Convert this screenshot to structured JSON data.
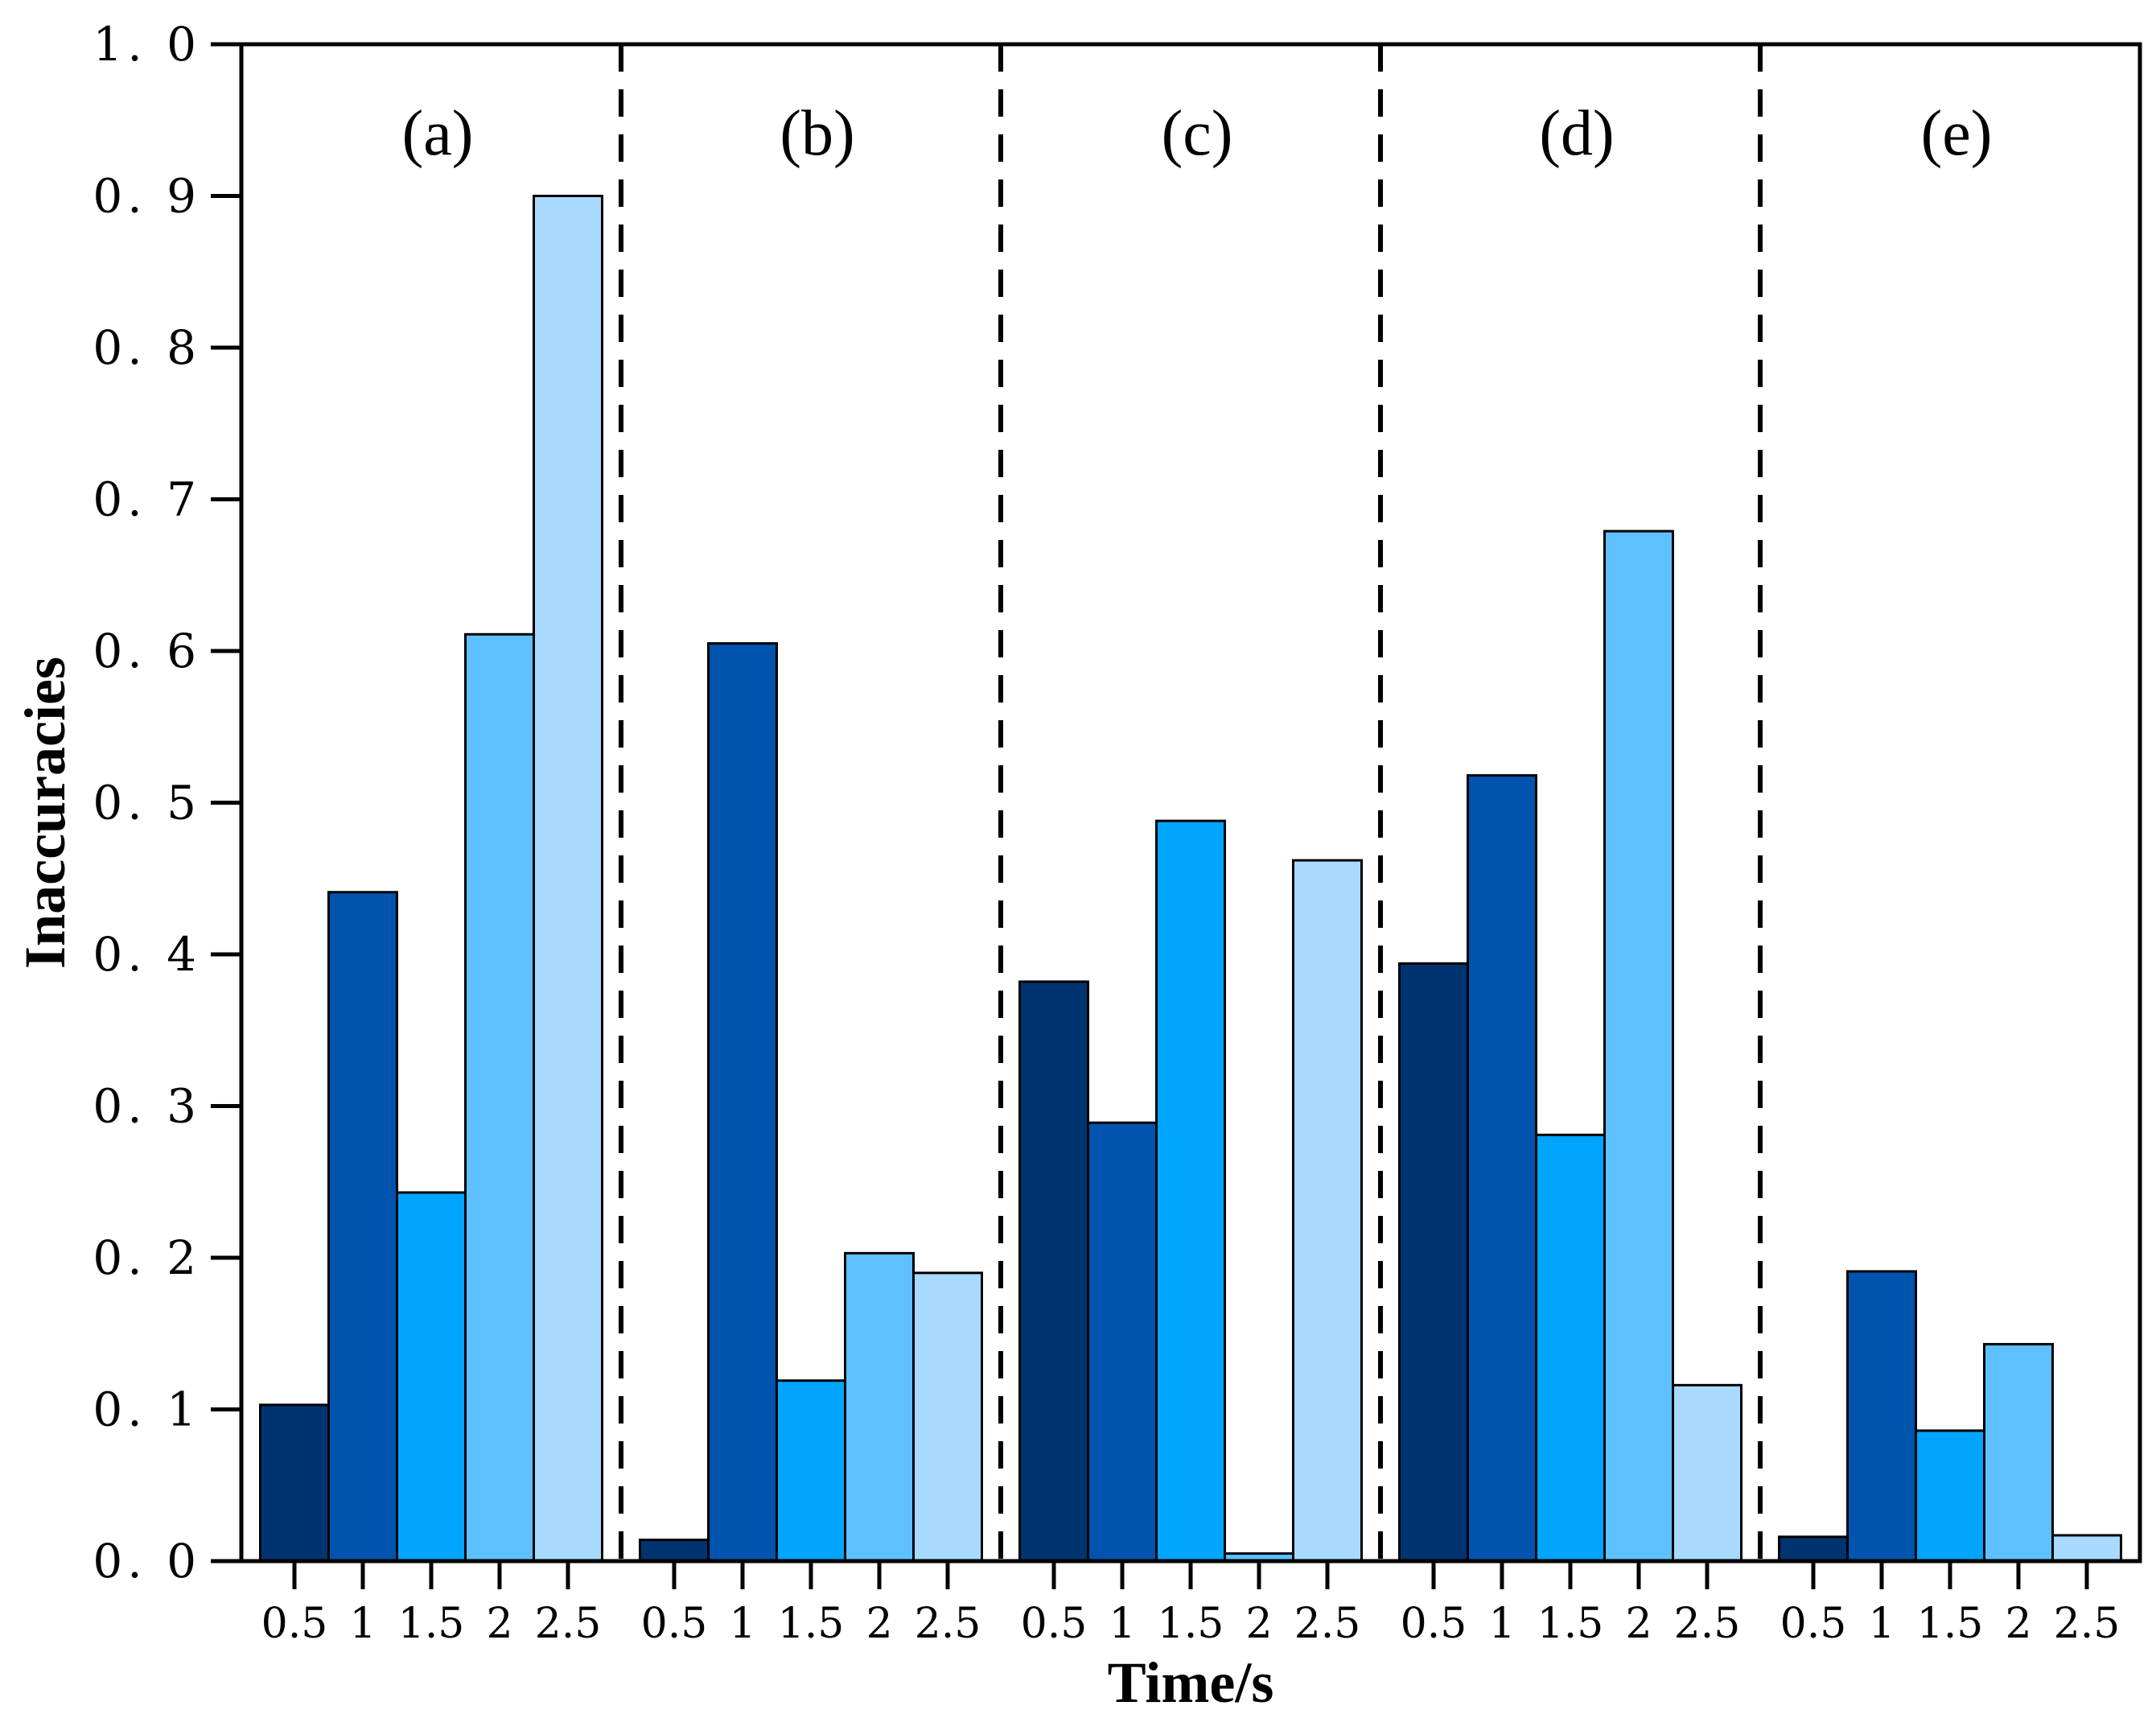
{
  "chart_data": {
    "type": "bar",
    "ylabel": "Inaccuracies",
    "xlabel": "Time/s",
    "ylim": [
      0,
      1.0
    ],
    "yticks": [
      "0. 0",
      "0. 1",
      "0. 2",
      "0. 3",
      "0. 4",
      "0. 5",
      "0. 6",
      "0. 7",
      "0. 8",
      "0. 9",
      "1. 0"
    ],
    "categories": [
      "0.5",
      "1",
      "1.5",
      "2",
      "2.5"
    ],
    "colors": [
      "#003470",
      "#0054ae",
      "#00a5fe",
      "#5ec0fe",
      "#a8daff"
    ],
    "panels": [
      {
        "label": "(a)",
        "values": [
          0.103,
          0.441,
          0.243,
          0.611,
          0.9
        ]
      },
      {
        "label": "(b)",
        "values": [
          0.014,
          0.605,
          0.119,
          0.203,
          0.19
        ]
      },
      {
        "label": "(c)",
        "values": [
          0.382,
          0.289,
          0.488,
          0.005,
          0.462
        ]
      },
      {
        "label": "(d)",
        "values": [
          0.394,
          0.518,
          0.281,
          0.679,
          0.116
        ]
      },
      {
        "label": "(e)",
        "values": [
          0.016,
          0.191,
          0.086,
          0.143,
          0.017
        ]
      }
    ]
  }
}
